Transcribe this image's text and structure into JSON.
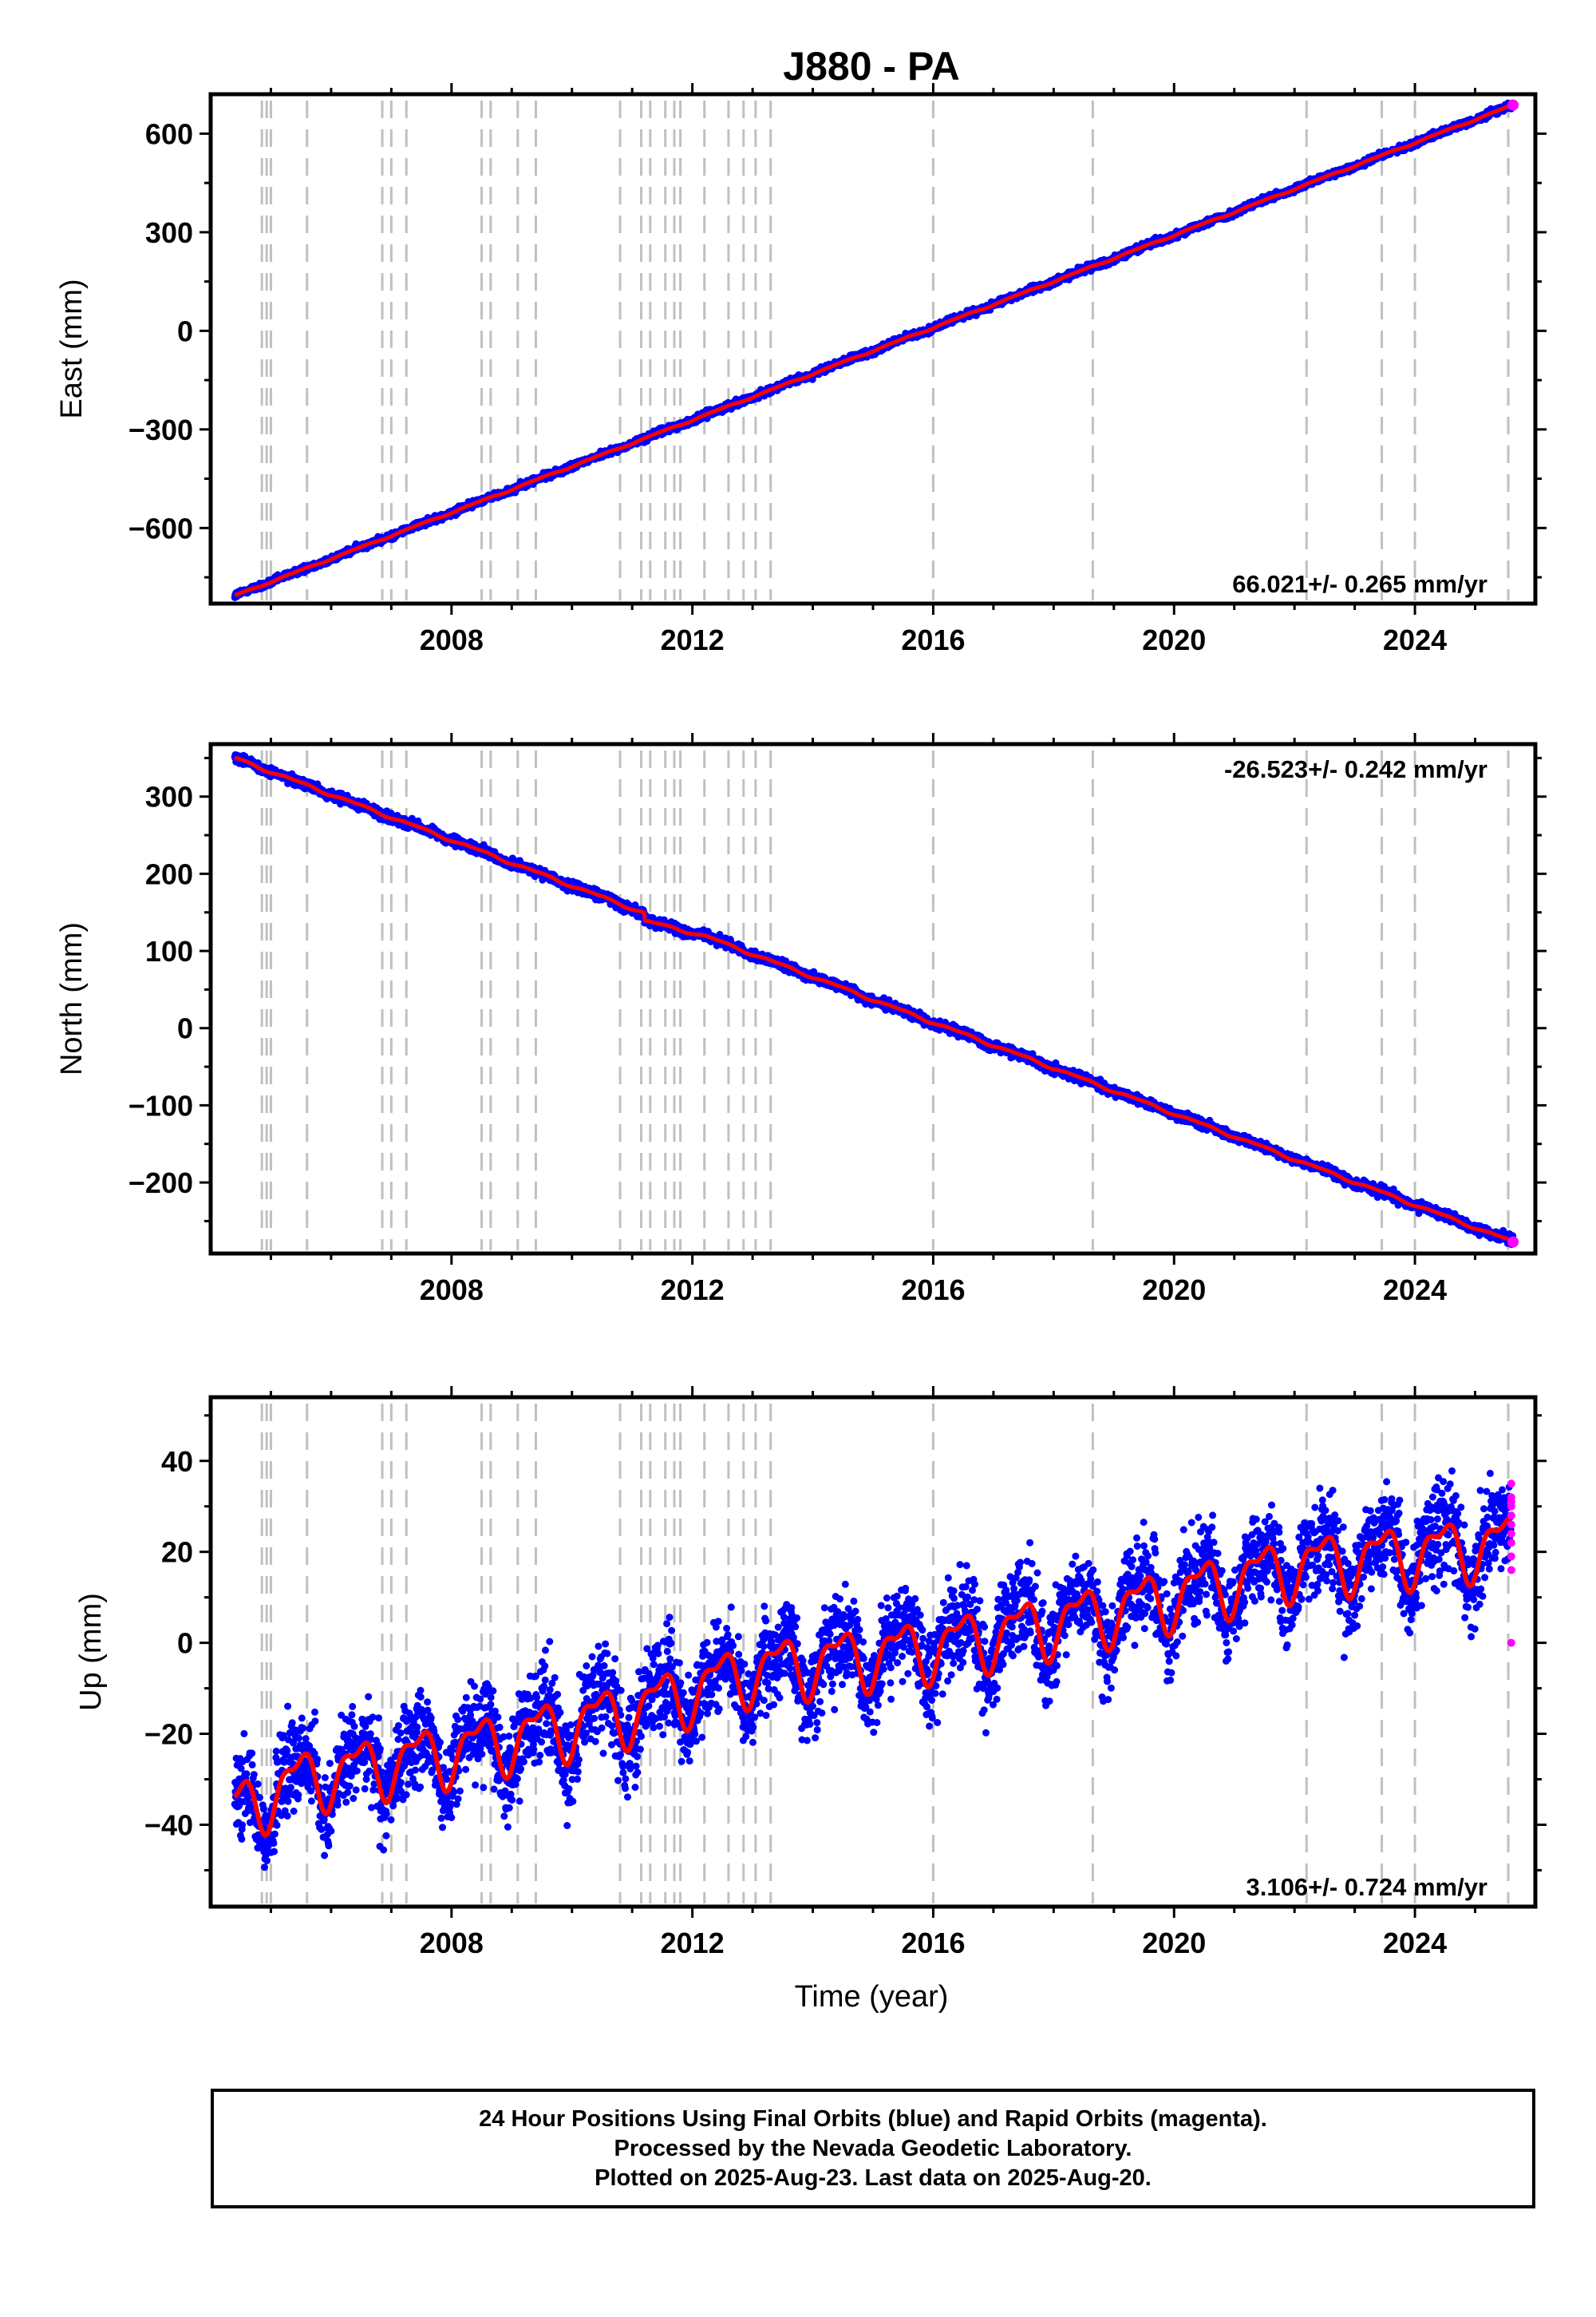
{
  "title": "J880 - PA",
  "xlabel": "Time (year)",
  "footer": {
    "line1": "24 Hour Positions Using Final Orbits (blue) and Rapid Orbits (magenta).",
    "line2": "Processed by the Nevada Geodetic Laboratory.",
    "line3": "Plotted on 2025-Aug-23. Last data on 2025-Aug-20."
  },
  "colors": {
    "final": "#0000ff",
    "rapid": "#ff00ff",
    "model": "#ff0000",
    "steps": "#c0c0c0"
  },
  "chart_data": [
    {
      "type": "scatter",
      "component": "east",
      "ylabel": "East (mm)",
      "rate_label": "66.021+/- 0.265 mm/yr",
      "rate_position": "bottom-right",
      "xlim": [
        2004.0,
        2026.0
      ],
      "ylim": [
        -830,
        720
      ],
      "xticks": [
        2008,
        2012,
        2016,
        2020,
        2024
      ],
      "yticks": [
        -600,
        -300,
        0,
        300,
        600
      ],
      "yticklabels": [
        "−600",
        "−300",
        "0",
        "300",
        "600"
      ],
      "x_start": 2004.4,
      "x_end": 2025.63,
      "y_start": -806,
      "y_end": 687,
      "seasonal_amplitude": 2,
      "noise": 5,
      "steps": [],
      "rapid_y_end": 687
    },
    {
      "type": "scatter",
      "component": "north",
      "ylabel": "North (mm)",
      "rate_label": "-26.523+/- 0.242 mm/yr",
      "rate_position": "top-right",
      "xlim": [
        2004.0,
        2026.0
      ],
      "ylim": [
        -292,
        368
      ],
      "xticks": [
        2008,
        2012,
        2016,
        2020,
        2024
      ],
      "yticks": [
        -200,
        -100,
        0,
        100,
        200,
        300
      ],
      "yticklabels": [
        "−200",
        "−100",
        "0",
        "100",
        "200",
        "300"
      ],
      "x_start": 2004.4,
      "x_end": 2025.63,
      "y_start": 350,
      "y_end": -277,
      "seasonal_amplitude": 1.5,
      "noise": 3,
      "steps": [
        {
          "x": 2011.2,
          "dy": -10
        }
      ],
      "rapid_y_end": -277
    },
    {
      "type": "scatter",
      "component": "up",
      "ylabel": "Up (mm)",
      "rate_label": "3.106+/- 0.724 mm/yr",
      "rate_position": "bottom-right",
      "xlim": [
        2004.0,
        2026.0
      ],
      "ylim": [
        -58,
        54
      ],
      "xticks": [
        2008,
        2012,
        2016,
        2020,
        2024
      ],
      "yticks": [
        -40,
        -20,
        0,
        20,
        40
      ],
      "yticklabels": [
        "−40",
        "−20",
        "0",
        "20",
        "40"
      ],
      "trend_points": [
        [
          2004.4,
          -37
        ],
        [
          2005.5,
          -30
        ],
        [
          2008.0,
          -24
        ],
        [
          2011.0,
          -15
        ],
        [
          2013.0,
          -6
        ],
        [
          2016.0,
          -1
        ],
        [
          2019.0,
          7
        ],
        [
          2022.0,
          17
        ],
        [
          2025.6,
          22
        ]
      ],
      "seasonal_amplitude": 6,
      "noise": 5,
      "steps": [],
      "rapid_y_range": [
        0,
        35
      ]
    }
  ],
  "step_epochs": [
    2004.85,
    2004.93,
    2005.0,
    2005.6,
    2006.85,
    2007.0,
    2007.25,
    2008.5,
    2008.65,
    2009.1,
    2009.4,
    2010.8,
    2011.15,
    2011.3,
    2011.55,
    2011.7,
    2011.8,
    2012.2,
    2012.6,
    2012.85,
    2013.05,
    2013.3,
    2016.0,
    2018.65,
    2022.2,
    2023.45,
    2024.0,
    2025.55
  ]
}
